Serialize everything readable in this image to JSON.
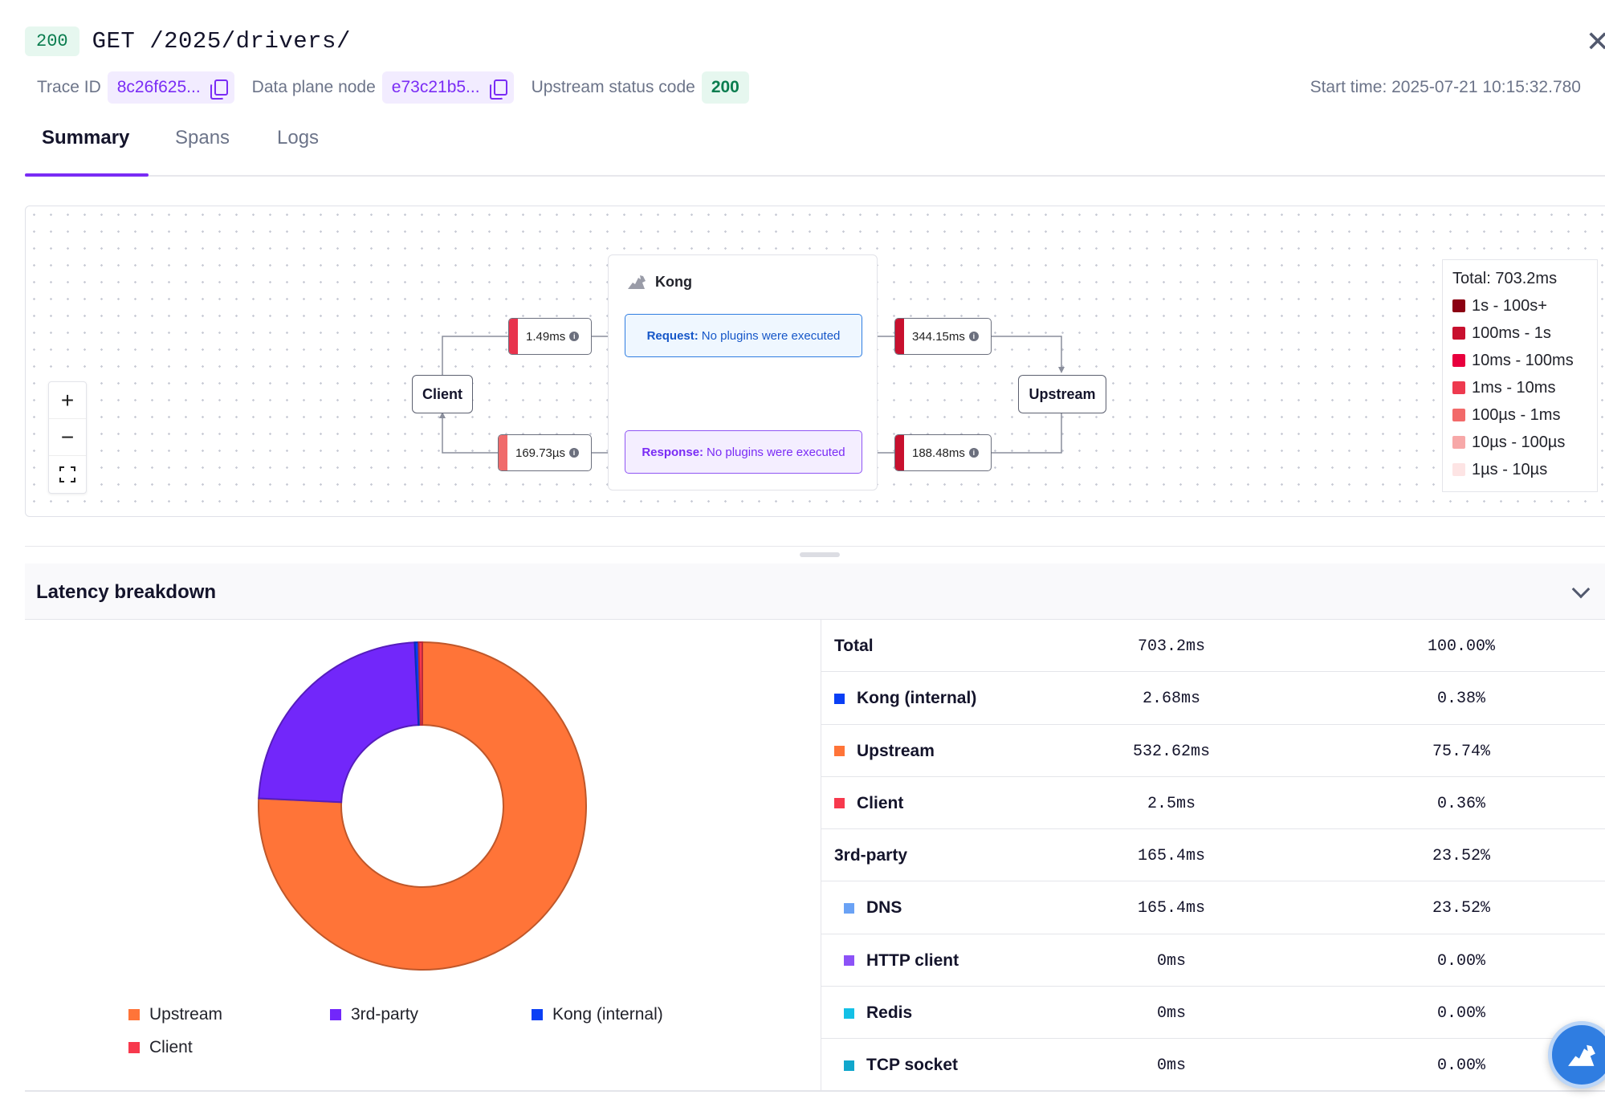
{
  "header": {
    "status_code": "200",
    "title": "GET /2025/drivers/",
    "close_icon": "close-icon"
  },
  "meta": {
    "trace_id_label": "Trace ID",
    "trace_id_value": "8c26f625...",
    "node_label": "Data plane node",
    "node_value": "e73c21b5...",
    "upstream_status_label": "Upstream status code",
    "upstream_status_value": "200",
    "start_time": "Start time: 2025-07-21 10:15:32.780",
    "copy_icon": "copy-icon"
  },
  "tabs": [
    {
      "label": "Summary",
      "active": true
    },
    {
      "label": "Spans",
      "active": false
    },
    {
      "label": "Logs",
      "active": false
    }
  ],
  "flow": {
    "client_label": "Client",
    "upstream_label": "Upstream",
    "kong_label": "Kong",
    "request_prefix": "Request:",
    "request_text": "No plugins were executed",
    "response_prefix": "Response:",
    "response_text": "No plugins were executed",
    "latencies": {
      "client_to_kong": {
        "value": "1.49ms",
        "color": "#e8334d"
      },
      "kong_to_upstream": {
        "value": "344.15ms",
        "color": "#c8102e"
      },
      "upstream_to_kong": {
        "value": "188.48ms",
        "color": "#c8102e"
      },
      "kong_to_client": {
        "value": "169.73µs",
        "color": "#f06b6b"
      }
    },
    "zoom_controls": {
      "zoom_in": "+",
      "zoom_out": "−"
    }
  },
  "latency_legend": {
    "total": "Total: 703.2ms",
    "ranges": [
      {
        "label": "1s - 100s+",
        "color": "#8b0012"
      },
      {
        "label": "100ms - 1s",
        "color": "#c8102e"
      },
      {
        "label": "10ms - 100ms",
        "color": "#e8003d"
      },
      {
        "label": "1ms - 10ms",
        "color": "#ee3a4f"
      },
      {
        "label": "100µs - 1ms",
        "color": "#f26a6a"
      },
      {
        "label": "10µs - 100µs",
        "color": "#f7a8a8"
      },
      {
        "label": "1µs - 10µs",
        "color": "#fde4e4"
      }
    ]
  },
  "breakdown": {
    "title": "Latency breakdown",
    "pie_legend": [
      {
        "label": "Upstream",
        "color": "#ff7438"
      },
      {
        "label": "3rd-party",
        "color": "#7227fa"
      },
      {
        "label": "Kong (internal)",
        "color": "#0a3ff5"
      },
      {
        "label": "Client",
        "color": "#f7394d"
      }
    ],
    "rows": [
      {
        "name": "Total",
        "value": "703.2ms",
        "pct": "100.00%",
        "color": "",
        "sub": false
      },
      {
        "name": "Kong (internal)",
        "value": "2.68ms",
        "pct": "0.38%",
        "color": "#0a3ff5",
        "sub": false
      },
      {
        "name": "Upstream",
        "value": "532.62ms",
        "pct": "75.74%",
        "color": "#ff7438",
        "sub": false
      },
      {
        "name": "Client",
        "value": "2.5ms",
        "pct": "0.36%",
        "color": "#f7394d",
        "sub": false
      },
      {
        "name": "3rd-party",
        "value": "165.4ms",
        "pct": "23.52%",
        "color": "",
        "sub": false
      },
      {
        "name": "DNS",
        "value": "165.4ms",
        "pct": "23.52%",
        "color": "#6aa2f5",
        "sub": true
      },
      {
        "name": "HTTP client",
        "value": "0ms",
        "pct": "0.00%",
        "color": "#8c52f7",
        "sub": true
      },
      {
        "name": "Redis",
        "value": "0ms",
        "pct": "0.00%",
        "color": "#14c0e6",
        "sub": true
      },
      {
        "name": "TCP socket",
        "value": "0ms",
        "pct": "0.00%",
        "color": "#11a7cc",
        "sub": true
      }
    ]
  },
  "chart_data": {
    "type": "pie",
    "categories": [
      "Upstream",
      "3rd-party",
      "Kong (internal)",
      "Client"
    ],
    "values": [
      75.74,
      23.52,
      0.38,
      0.36
    ],
    "colors": [
      "#ff7438",
      "#7227fa",
      "#0a3ff5",
      "#f7394d"
    ],
    "donut": true,
    "legend": "bottom"
  },
  "fab_icon": "kong-assistant-icon"
}
